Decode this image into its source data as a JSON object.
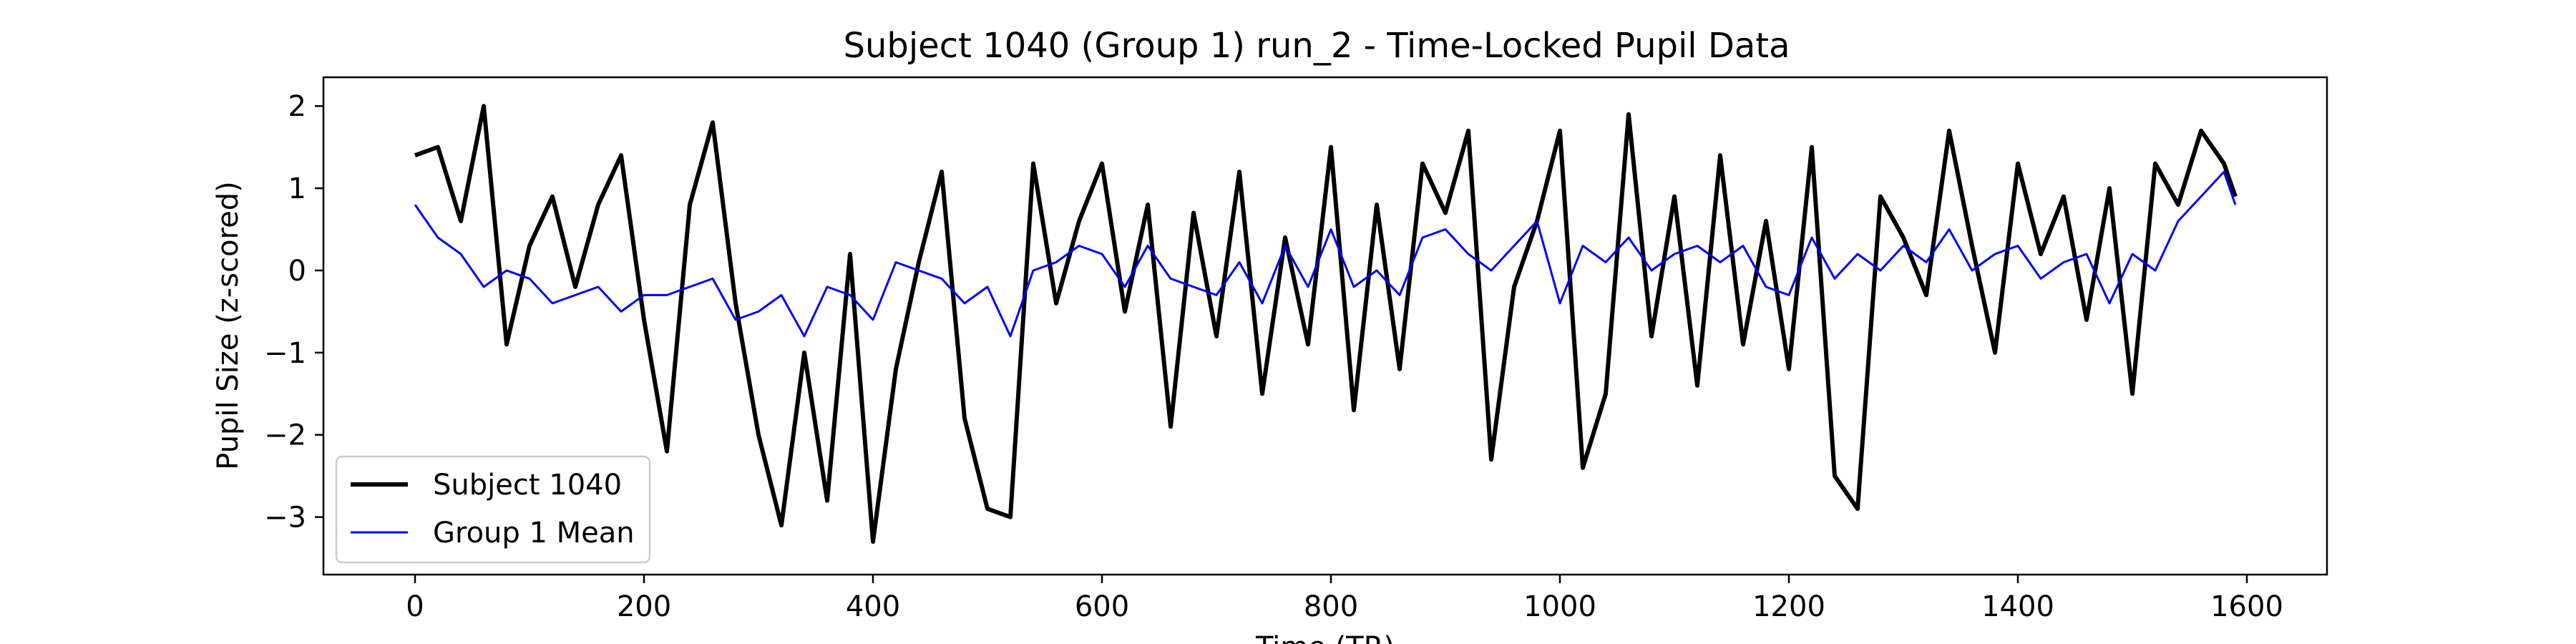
{
  "chart_data": {
    "type": "line",
    "title": "Subject 1040 (Group 1) run_2 - Time-Locked Pupil Data",
    "xlabel": "Time (TR)",
    "ylabel": "Pupil Size (z-scored)",
    "xlim": [
      -80,
      1670
    ],
    "ylim": [
      -3.7,
      2.35
    ],
    "xticks": [
      0,
      200,
      400,
      600,
      800,
      1000,
      1200,
      1400,
      1600
    ],
    "yticks": [
      -3,
      -2,
      -1,
      0,
      1,
      2
    ],
    "legend_position": "lower-left",
    "grid": false,
    "series": [
      {
        "name": "Subject 1040",
        "color": "#000000",
        "x": [
          0,
          20,
          40,
          60,
          80,
          100,
          120,
          140,
          160,
          180,
          200,
          220,
          240,
          260,
          280,
          300,
          320,
          340,
          360,
          380,
          400,
          420,
          440,
          460,
          480,
          500,
          520,
          540,
          560,
          580,
          600,
          620,
          640,
          660,
          680,
          700,
          720,
          740,
          760,
          780,
          800,
          820,
          840,
          860,
          880,
          900,
          920,
          940,
          960,
          980,
          1000,
          1020,
          1040,
          1060,
          1080,
          1100,
          1120,
          1140,
          1160,
          1180,
          1200,
          1220,
          1240,
          1260,
          1280,
          1300,
          1320,
          1340,
          1360,
          1380,
          1400,
          1420,
          1440,
          1460,
          1480,
          1500,
          1520,
          1540,
          1560,
          1580,
          1590
        ],
        "y": [
          1.4,
          1.5,
          0.6,
          2.0,
          -0.9,
          0.3,
          0.9,
          -0.2,
          0.8,
          1.4,
          -0.6,
          -2.2,
          0.8,
          1.8,
          -0.4,
          -2.0,
          -3.1,
          -1.0,
          -2.8,
          0.2,
          -3.3,
          -1.2,
          0.1,
          1.2,
          -1.8,
          -2.9,
          -3.0,
          1.3,
          -0.4,
          0.6,
          1.3,
          -0.5,
          0.8,
          -1.9,
          0.7,
          -0.8,
          1.2,
          -1.5,
          0.4,
          -0.9,
          1.5,
          -1.7,
          0.8,
          -1.2,
          1.3,
          0.7,
          1.7,
          -2.3,
          -0.2,
          0.6,
          1.7,
          -2.4,
          -1.5,
          1.9,
          -0.8,
          0.9,
          -1.4,
          1.4,
          -0.9,
          0.6,
          -1.2,
          1.5,
          -2.5,
          -2.9,
          0.9,
          0.4,
          -0.3,
          1.7,
          0.3,
          -1.0,
          1.3,
          0.2,
          0.9,
          -0.6,
          1.0,
          -1.5,
          1.3,
          0.8,
          1.7,
          1.3,
          0.9
        ]
      },
      {
        "name": "Group 1 Mean",
        "color": "#0000ff",
        "x": [
          0,
          20,
          40,
          60,
          80,
          100,
          120,
          140,
          160,
          180,
          200,
          220,
          240,
          260,
          280,
          300,
          320,
          340,
          360,
          380,
          400,
          420,
          440,
          460,
          480,
          500,
          520,
          540,
          560,
          580,
          600,
          620,
          640,
          660,
          680,
          700,
          720,
          740,
          760,
          780,
          800,
          820,
          840,
          860,
          880,
          900,
          920,
          940,
          960,
          980,
          1000,
          1020,
          1040,
          1060,
          1080,
          1100,
          1120,
          1140,
          1160,
          1180,
          1200,
          1220,
          1240,
          1260,
          1280,
          1300,
          1320,
          1340,
          1360,
          1380,
          1400,
          1420,
          1440,
          1460,
          1480,
          1500,
          1520,
          1540,
          1560,
          1580,
          1590
        ],
        "y": [
          0.8,
          0.4,
          0.2,
          -0.2,
          0.0,
          -0.1,
          -0.4,
          -0.3,
          -0.2,
          -0.5,
          -0.3,
          -0.3,
          -0.2,
          -0.1,
          -0.6,
          -0.5,
          -0.3,
          -0.8,
          -0.2,
          -0.3,
          -0.6,
          0.1,
          0.0,
          -0.1,
          -0.4,
          -0.2,
          -0.8,
          0.0,
          0.1,
          0.3,
          0.2,
          -0.2,
          0.3,
          -0.1,
          -0.2,
          -0.3,
          0.1,
          -0.4,
          0.3,
          -0.2,
          0.5,
          -0.2,
          0.0,
          -0.3,
          0.4,
          0.5,
          0.2,
          0.0,
          0.3,
          0.6,
          -0.4,
          0.3,
          0.1,
          0.4,
          0.0,
          0.2,
          0.3,
          0.1,
          0.3,
          -0.2,
          -0.3,
          0.4,
          -0.1,
          0.2,
          0.0,
          0.3,
          0.1,
          0.5,
          0.0,
          0.2,
          0.3,
          -0.1,
          0.1,
          0.2,
          -0.4,
          0.2,
          0.0,
          0.6,
          0.9,
          1.2,
          0.8
        ]
      }
    ]
  }
}
